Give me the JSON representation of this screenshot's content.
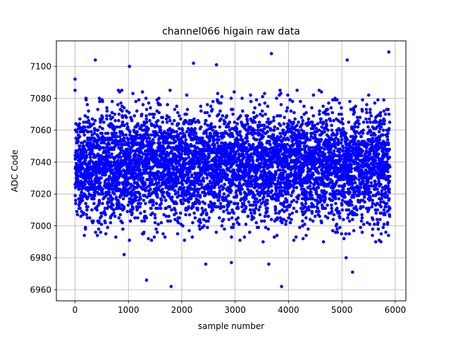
{
  "chart_data": {
    "type": "scatter",
    "title": "channel066 higain raw data",
    "xlabel": "sample number",
    "ylabel": "ADC Code",
    "xlim": [
      -350,
      6200
    ],
    "ylim": [
      6953,
      7116
    ],
    "xticks": [
      0,
      1000,
      2000,
      3000,
      4000,
      5000,
      6000
    ],
    "yticks": [
      6960,
      6980,
      7000,
      7020,
      7040,
      7060,
      7080,
      7100
    ],
    "grid": true,
    "legend": "none",
    "marker_color": "#0000ff",
    "x_range": [
      0,
      5900
    ],
    "sample_count": 5900,
    "distribution": {
      "mean": 7038,
      "std_dev": 17
    },
    "outliers": [
      {
        "x": 0,
        "y": 7092
      },
      {
        "x": 380,
        "y": 7104
      },
      {
        "x": 1020,
        "y": 7100
      },
      {
        "x": 1340,
        "y": 6966
      },
      {
        "x": 1800,
        "y": 6962
      },
      {
        "x": 2220,
        "y": 7102
      },
      {
        "x": 2650,
        "y": 7101
      },
      {
        "x": 3680,
        "y": 7108
      },
      {
        "x": 3870,
        "y": 6962
      },
      {
        "x": 5100,
        "y": 7104
      },
      {
        "x": 5200,
        "y": 6971
      },
      {
        "x": 5880,
        "y": 7109
      },
      {
        "x": 920,
        "y": 6982
      },
      {
        "x": 2450,
        "y": 6976
      },
      {
        "x": 2930,
        "y": 6977
      },
      {
        "x": 3630,
        "y": 6976
      },
      {
        "x": 5080,
        "y": 6980
      }
    ]
  }
}
